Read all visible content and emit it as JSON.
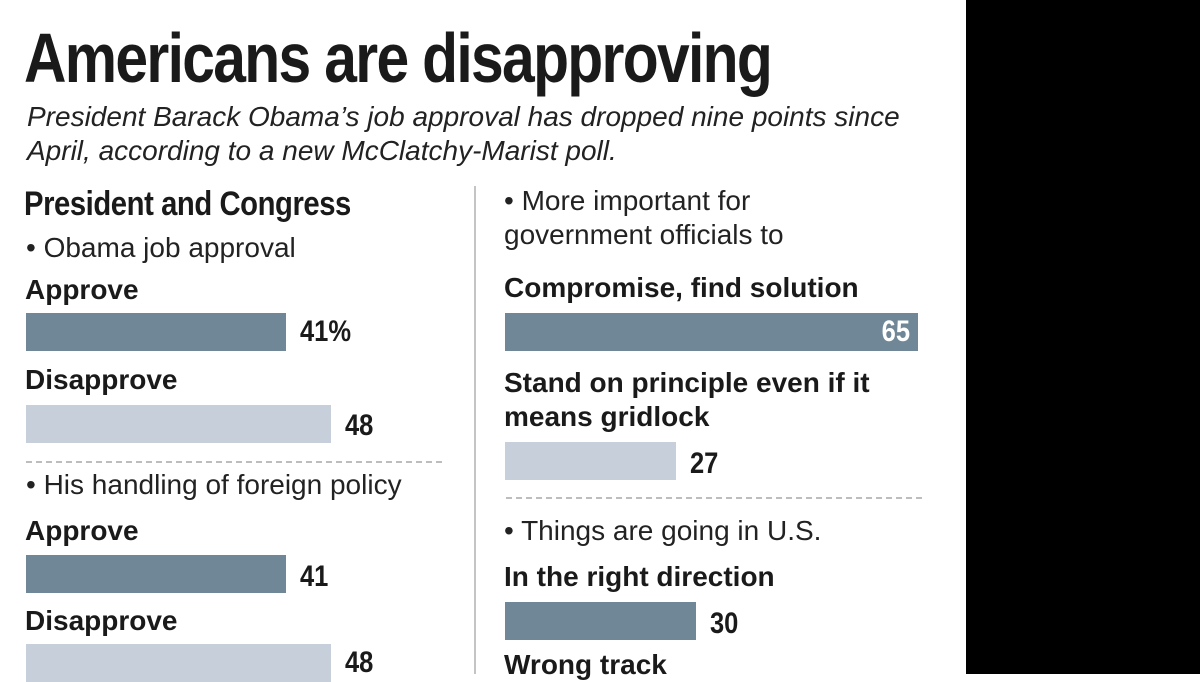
{
  "title": "Americans are disapproving",
  "subtitle": "President Barack Obama’s job approval has dropped nine points since April, according to a new McClatchy-Marist poll.",
  "section_heading": "President and Congress",
  "colors": {
    "approve_bar": "#6f8797",
    "disapprove_bar": "#c7d0da",
    "side_panel": "#000000"
  },
  "chart_data": [
    {
      "type": "bar",
      "title": "• Obama job approval",
      "categories": [
        "Approve",
        "Disapprove"
      ],
      "values": [
        41,
        48
      ],
      "value_labels": [
        "41%",
        "48"
      ],
      "unit": "%"
    },
    {
      "type": "bar",
      "title": "• His handling of foreign policy",
      "categories": [
        "Approve",
        "Disapprove"
      ],
      "values": [
        41,
        48
      ],
      "value_labels": [
        "41",
        "48"
      ],
      "unit": "%"
    },
    {
      "type": "bar",
      "title": "• More important for government officials to",
      "categories": [
        "Compromise, find solution",
        "Stand on principle even if it means gridlock"
      ],
      "values": [
        65,
        27
      ],
      "value_labels": [
        "65",
        "27"
      ],
      "unit": "%"
    },
    {
      "type": "bar",
      "title": "• Things are going in U.S.",
      "categories": [
        "In the right direction",
        "Wrong track"
      ],
      "values": [
        30,
        null
      ],
      "value_labels": [
        "30",
        ""
      ],
      "unit": "%"
    }
  ]
}
